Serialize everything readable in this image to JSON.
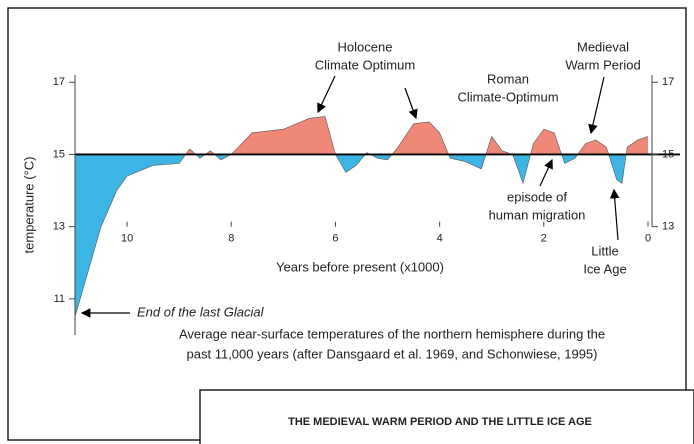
{
  "chart_data": {
    "type": "area",
    "ylabel": "temperature (°C)",
    "xlabel": "Years before present (x1000)",
    "x": [
      11,
      10.8,
      10.5,
      10.2,
      10.0,
      9.5,
      9.0,
      8.8,
      8.6,
      8.4,
      8.2,
      8.0,
      7.6,
      7.0,
      6.5,
      6.2,
      6.0,
      5.8,
      5.6,
      5.4,
      5.2,
      5.0,
      4.8,
      4.5,
      4.2,
      4.0,
      3.8,
      3.5,
      3.2,
      3.0,
      2.8,
      2.6,
      2.4,
      2.2,
      2.0,
      1.8,
      1.6,
      1.4,
      1.2,
      1.0,
      0.8,
      0.6,
      0.5,
      0.4,
      0.2,
      0
    ],
    "values": [
      10.5,
      11.5,
      13.0,
      14.0,
      14.4,
      14.7,
      14.75,
      15.15,
      14.9,
      15.1,
      14.85,
      15.0,
      15.6,
      15.7,
      16.0,
      16.05,
      15.0,
      14.5,
      14.7,
      15.05,
      14.9,
      14.85,
      15.2,
      15.85,
      15.9,
      15.6,
      14.9,
      14.8,
      14.6,
      15.5,
      15.1,
      15.0,
      14.2,
      15.3,
      15.7,
      15.6,
      14.75,
      14.9,
      15.3,
      15.4,
      15.2,
      14.3,
      14.2,
      15.2,
      15.4,
      15.5
    ],
    "baseline": 15,
    "color_above": "#f08878",
    "color_below": "#3cb4e4",
    "xlim": [
      11,
      0
    ],
    "xticks": [
      10,
      8,
      6,
      4,
      2,
      0
    ],
    "ylim": [
      10,
      17.2
    ],
    "yticks": [
      11,
      13,
      15,
      17
    ],
    "y2lim": [
      13,
      17.2
    ],
    "y2ticks": [
      13,
      15,
      17
    ],
    "annotations": [
      {
        "lines": [
          "Holocene",
          "Climate Optimum"
        ]
      },
      {
        "lines": [
          "Roman",
          "Climate-Optimum"
        ]
      },
      {
        "lines": [
          "Medieval",
          "Warm Period"
        ]
      },
      {
        "lines": [
          "episode of",
          "human migration"
        ]
      },
      {
        "lines": [
          "Little",
          "Ice Age"
        ]
      },
      {
        "lines": [
          "End of the last Glacial"
        ]
      }
    ],
    "caption": [
      "Average near-surface temperatures of the northern hemisphere during the",
      "past 11,000 years (after Dansgaard et al. 1969, and Schonwiese, 1995)"
    ],
    "box_title": "THE MEDIEVAL WARM PERIOD AND THE LITTLE ICE AGE"
  }
}
